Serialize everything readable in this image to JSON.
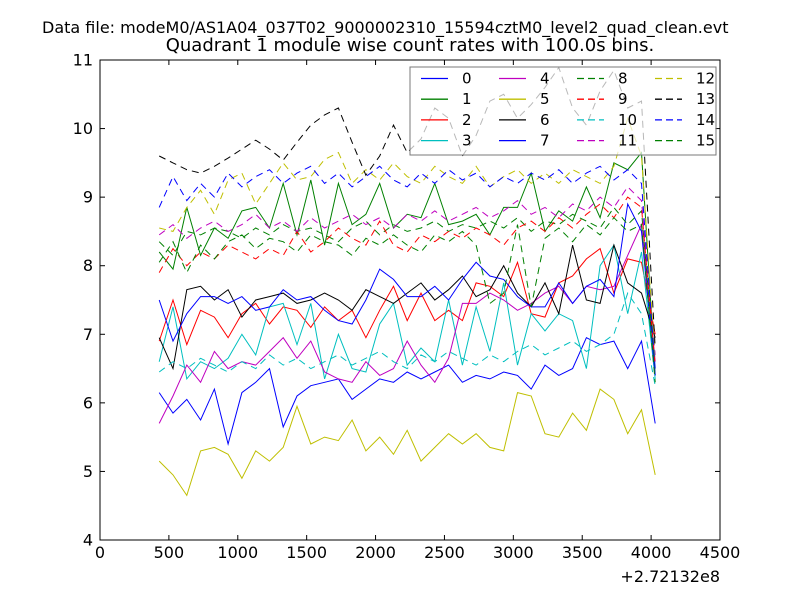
{
  "header": {
    "data_file_label": "Data file: modeM0/AS1A04_037T02_9000002310_15594cztM0_level2_quad_clean.evt"
  },
  "chart_data": {
    "type": "line",
    "title": "Quadrant 1 module wise count rates with 100.0s bins.",
    "xlabel": "",
    "ylabel": "",
    "xlim": [
      0,
      4500
    ],
    "ylim": [
      4,
      11
    ],
    "xticks": [
      0,
      500,
      1000,
      1500,
      2000,
      2500,
      3000,
      3500,
      4000,
      4500
    ],
    "yticks": [
      4,
      5,
      6,
      7,
      8,
      9,
      10,
      11
    ],
    "x_offset_text": "+2.72132e8",
    "grid": false,
    "legend_position": "upper center",
    "legend_columns": 4,
    "x": [
      430,
      530,
      630,
      730,
      830,
      930,
      1030,
      1130,
      1230,
      1330,
      1430,
      1530,
      1630,
      1730,
      1830,
      1930,
      2030,
      2130,
      2230,
      2330,
      2430,
      2530,
      2630,
      2730,
      2830,
      2930,
      3030,
      3130,
      3230,
      3330,
      3430,
      3530,
      3630,
      3730,
      3830,
      3930,
      4030
    ],
    "series": [
      {
        "name": "0",
        "color": "#0000ff",
        "style": "solid",
        "values": [
          6.15,
          5.85,
          6.05,
          5.75,
          6.2,
          5.4,
          6.15,
          6.3,
          6.5,
          5.65,
          6.1,
          6.25,
          6.3,
          6.35,
          6.05,
          6.2,
          6.35,
          6.3,
          6.45,
          6.35,
          6.45,
          6.55,
          6.3,
          6.4,
          6.35,
          6.45,
          6.4,
          6.2,
          6.55,
          6.4,
          6.5,
          6.95,
          6.85,
          6.9,
          6.5,
          6.9,
          5.7
        ]
      },
      {
        "name": "1",
        "color": "#008000",
        "style": "solid",
        "values": [
          8.2,
          7.95,
          8.85,
          8.15,
          8.55,
          8.4,
          8.8,
          8.85,
          8.55,
          9.2,
          8.45,
          9.25,
          8.3,
          9.2,
          8.6,
          8.75,
          9.2,
          8.55,
          8.75,
          8.7,
          9.2,
          8.6,
          8.65,
          8.75,
          8.45,
          8.85,
          8.85,
          9.35,
          8.5,
          8.8,
          8.65,
          9.15,
          8.7,
          9.5,
          9.4,
          9.65,
          6.4
        ]
      },
      {
        "name": "2",
        "color": "#ff0000",
        "style": "solid",
        "values": [
          6.9,
          7.5,
          6.85,
          7.35,
          7.25,
          6.95,
          7.3,
          7.45,
          7.15,
          7.4,
          7.35,
          7.1,
          7.4,
          7.2,
          7.35,
          6.95,
          7.35,
          7.7,
          7.2,
          7.6,
          7.2,
          7.35,
          7.2,
          7.75,
          7.7,
          7.55,
          8.05,
          7.3,
          7.25,
          7.75,
          7.85,
          8.1,
          8.25,
          7.6,
          8.1,
          8.05,
          7.0
        ]
      },
      {
        "name": "3",
        "color": "#00bfbf",
        "style": "solid",
        "values": [
          6.6,
          7.4,
          6.35,
          6.6,
          6.5,
          6.65,
          7.0,
          6.7,
          7.4,
          7.45,
          6.85,
          7.45,
          6.35,
          7.0,
          6.5,
          6.45,
          7.15,
          7.45,
          6.55,
          6.8,
          6.6,
          7.5,
          6.55,
          7.4,
          6.75,
          7.75,
          6.55,
          7.3,
          7.05,
          7.3,
          7.2,
          6.5,
          8.0,
          8.3,
          7.3,
          8.2,
          6.35
        ]
      },
      {
        "name": "4",
        "color": "#bf00bf",
        "style": "solid",
        "values": [
          5.7,
          6.1,
          6.55,
          6.3,
          6.75,
          6.5,
          6.6,
          6.55,
          6.75,
          6.95,
          6.65,
          6.9,
          6.45,
          6.35,
          6.3,
          6.6,
          6.4,
          6.5,
          6.9,
          6.55,
          6.3,
          6.65,
          7.45,
          7.45,
          7.6,
          7.5,
          7.35,
          7.45,
          7.6,
          7.7,
          7.45,
          7.7,
          7.65,
          7.7,
          8.15,
          8.6,
          6.6
        ]
      },
      {
        "name": "5",
        "color": "#bfbf00",
        "style": "solid",
        "values": [
          5.15,
          4.95,
          4.65,
          5.3,
          5.35,
          5.25,
          4.9,
          5.3,
          5.15,
          5.35,
          5.95,
          5.4,
          5.5,
          5.45,
          5.75,
          5.3,
          5.5,
          5.25,
          5.6,
          5.15,
          5.35,
          5.55,
          5.4,
          5.55,
          5.35,
          5.3,
          6.15,
          6.1,
          5.55,
          5.5,
          5.85,
          5.6,
          6.2,
          6.05,
          5.55,
          5.9,
          4.95
        ]
      },
      {
        "name": "6",
        "color": "#000000",
        "style": "solid",
        "values": [
          6.95,
          6.5,
          7.65,
          7.7,
          7.5,
          7.65,
          7.25,
          7.5,
          7.55,
          7.6,
          7.45,
          7.5,
          7.6,
          7.5,
          7.35,
          7.65,
          7.55,
          7.45,
          7.6,
          7.75,
          7.5,
          7.65,
          7.85,
          7.55,
          7.65,
          8.0,
          7.6,
          7.4,
          7.75,
          7.3,
          8.3,
          7.5,
          7.45,
          8.3,
          7.75,
          7.6,
          6.95
        ]
      },
      {
        "name": "7",
        "color": "#0000ff",
        "style": "solid",
        "values": [
          7.5,
          6.9,
          7.3,
          7.55,
          7.55,
          7.45,
          7.55,
          7.35,
          7.4,
          7.65,
          7.5,
          7.55,
          7.35,
          7.2,
          7.15,
          7.5,
          7.95,
          7.8,
          7.55,
          7.55,
          7.7,
          7.5,
          7.8,
          8.05,
          7.85,
          7.8,
          7.55,
          7.4,
          7.4,
          7.75,
          7.45,
          7.7,
          7.8,
          7.55,
          8.9,
          8.5,
          6.4
        ]
      },
      {
        "name": "8",
        "color": "#008000",
        "style": "dashed",
        "values": [
          8.35,
          8.15,
          8.5,
          8.45,
          8.55,
          8.5,
          8.4,
          8.55,
          8.45,
          8.6,
          8.5,
          8.55,
          8.45,
          8.35,
          8.55,
          8.65,
          8.45,
          8.6,
          8.5,
          8.55,
          8.65,
          8.5,
          8.6,
          8.55,
          8.65,
          8.55,
          8.7,
          8.5,
          8.65,
          8.6,
          8.75,
          8.65,
          8.55,
          8.85,
          8.6,
          8.8,
          6.45
        ]
      },
      {
        "name": "9",
        "color": "#ff0000",
        "style": "dashed",
        "values": [
          7.9,
          8.25,
          8.0,
          8.2,
          8.1,
          8.3,
          8.2,
          8.1,
          8.25,
          8.15,
          8.5,
          8.2,
          8.35,
          8.55,
          8.4,
          8.3,
          8.65,
          8.3,
          8.2,
          8.45,
          8.35,
          8.5,
          8.4,
          8.55,
          8.45,
          8.3,
          8.55,
          8.65,
          8.5,
          8.7,
          8.55,
          8.75,
          8.9,
          8.7,
          9.0,
          8.85,
          6.55
        ]
      },
      {
        "name": "10",
        "color": "#00bfbf",
        "style": "dashed",
        "values": [
          6.45,
          6.6,
          6.5,
          6.65,
          6.55,
          6.45,
          6.6,
          6.5,
          6.7,
          6.55,
          6.65,
          6.5,
          6.6,
          6.7,
          6.55,
          6.65,
          6.75,
          6.6,
          6.5,
          6.7,
          6.6,
          6.75,
          6.65,
          6.55,
          6.7,
          6.6,
          6.75,
          6.85,
          6.7,
          6.8,
          6.9,
          6.75,
          6.85,
          7.0,
          7.6,
          7.3,
          6.25
        ]
      },
      {
        "name": "11",
        "color": "#bf00bf",
        "style": "dashed",
        "values": [
          8.45,
          8.6,
          8.4,
          8.55,
          8.65,
          8.5,
          8.6,
          8.75,
          8.55,
          8.65,
          8.5,
          8.7,
          8.55,
          8.65,
          8.75,
          8.6,
          8.7,
          8.55,
          8.75,
          8.65,
          8.8,
          8.65,
          8.75,
          8.85,
          8.7,
          8.8,
          8.95,
          8.75,
          8.85,
          8.7,
          8.9,
          8.8,
          9.0,
          8.85,
          9.15,
          8.95,
          6.7
        ]
      },
      {
        "name": "12",
        "color": "#bfbf00",
        "style": "dashed",
        "values": [
          8.55,
          8.5,
          8.85,
          9.1,
          8.75,
          9.25,
          9.35,
          8.9,
          9.2,
          9.5,
          9.25,
          9.3,
          9.55,
          9.65,
          9.2,
          9.4,
          9.25,
          9.5,
          9.3,
          9.2,
          9.45,
          9.3,
          9.2,
          9.45,
          9.15,
          9.3,
          9.4,
          9.2,
          9.35,
          9.2,
          9.4,
          9.3,
          9.2,
          9.45,
          10.15,
          9.6,
          6.6
        ]
      },
      {
        "name": "13",
        "color": "#000000",
        "style": "dashed",
        "values": [
          9.6,
          9.5,
          9.4,
          9.35,
          9.45,
          9.57,
          9.7,
          9.83,
          9.7,
          9.54,
          9.8,
          10.05,
          10.2,
          10.3,
          9.8,
          9.32,
          9.6,
          10.05,
          9.65,
          9.85,
          10.3,
          10.15,
          9.6,
          9.9,
          10.4,
          10.5,
          10.15,
          10.35,
          10.6,
          10.89,
          10.3,
          10.05,
          10.55,
          10.85,
          10.3,
          10.4,
          6.8
        ]
      },
      {
        "name": "14",
        "color": "#0000ff",
        "style": "dashed",
        "values": [
          8.85,
          9.3,
          8.95,
          9.2,
          9.0,
          9.35,
          9.15,
          9.3,
          9.4,
          9.2,
          9.35,
          9.45,
          9.2,
          9.35,
          9.15,
          9.3,
          9.45,
          9.25,
          9.15,
          9.35,
          9.2,
          9.4,
          9.25,
          9.35,
          9.15,
          9.3,
          9.2,
          9.35,
          9.25,
          9.4,
          9.2,
          9.35,
          9.45,
          9.25,
          9.4,
          9.2,
          6.5
        ]
      },
      {
        "name": "15",
        "color": "#008000",
        "style": "dashed",
        "values": [
          8.05,
          8.35,
          7.9,
          8.3,
          8.1,
          8.35,
          8.45,
          8.25,
          8.4,
          8.35,
          8.2,
          8.45,
          8.35,
          8.3,
          8.15,
          8.4,
          8.3,
          8.45,
          8.3,
          8.2,
          8.45,
          8.35,
          8.5,
          8.3,
          7.45,
          7.6,
          8.6,
          7.4,
          8.4,
          8.55,
          8.35,
          8.6,
          8.45,
          8.7,
          8.5,
          8.6,
          6.3
        ]
      }
    ]
  }
}
